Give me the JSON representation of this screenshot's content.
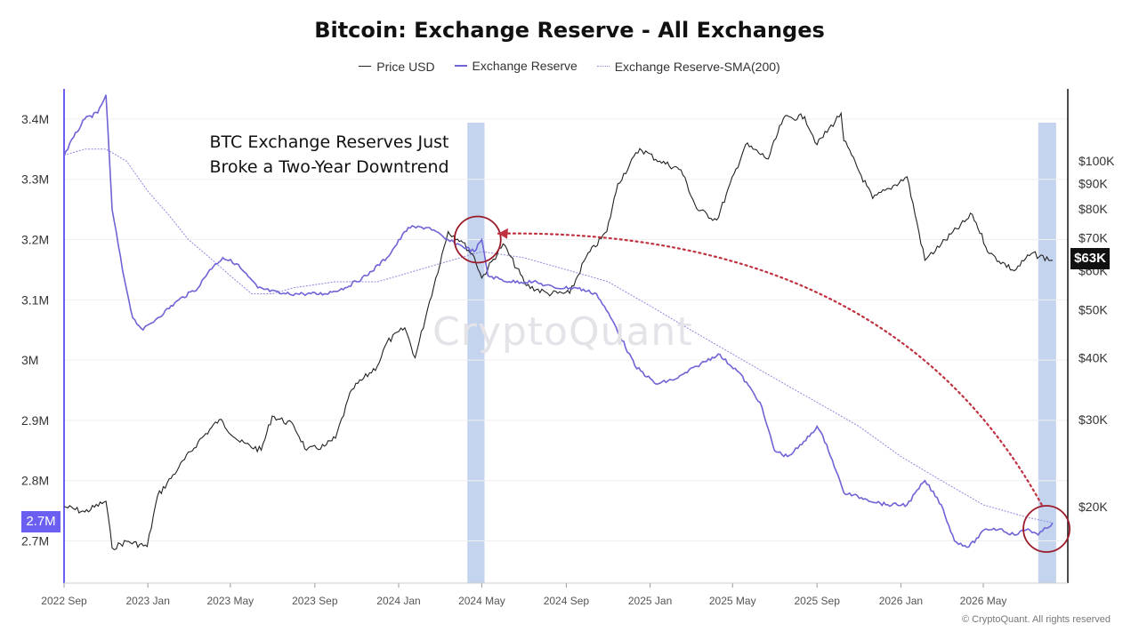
{
  "title": "Bitcoin: Exchange Reserve - All Exchanges",
  "legend": {
    "price": "Price USD",
    "reserve": "Exchange Reserve",
    "sma": "Exchange Reserve-SMA(200)"
  },
  "annotation": {
    "line1": "BTC Exchange Reserves Just",
    "line2": "Broke a Two-Year Downtrend"
  },
  "watermark": "CryptoQuant",
  "copyright": "© CryptoQuant. All rights reserved",
  "current_reserve_label": "2.7M",
  "current_price_label": "$63K",
  "colors": {
    "price": "#222222",
    "reserve": "#6f63d6",
    "sma": "#8f88e0",
    "highlight_band": "#c5d4ee",
    "circle": "#9b1b2b",
    "arrow": "#c0313f",
    "badge_reserve": "#6a5ff0",
    "badge_price": "#111111"
  },
  "chart_data": {
    "type": "line",
    "x_ticks": [
      "2022 Sep",
      "2023 Jan",
      "2023 May",
      "2023 Sep",
      "2024 Jan",
      "2024 May",
      "2024 Sep",
      "2025 Jan",
      "2025 May",
      "2025 Sep",
      "2026 Jan",
      "2026 May"
    ],
    "x_range": [
      "2022-09",
      "2026-09"
    ],
    "y_left": {
      "ticks": [
        "2.7M",
        "2.8M",
        "2.9M",
        "3M",
        "3.1M",
        "3.2M",
        "3.3M",
        "3.4M"
      ],
      "values": [
        2.7,
        2.8,
        2.9,
        3.0,
        3.1,
        3.2,
        3.3,
        3.4
      ],
      "range": [
        2.63,
        3.45
      ],
      "unit": "M BTC"
    },
    "y_right": {
      "ticks": [
        "$20K",
        "$30K",
        "$40K",
        "$50K",
        "$60K",
        "$70K",
        "$80K",
        "$90K",
        "$100K"
      ],
      "values": [
        20000,
        30000,
        40000,
        50000,
        60000,
        70000,
        80000,
        90000,
        100000
      ],
      "scale": "log",
      "range": [
        14000,
        140000
      ]
    },
    "highlight_bands": [
      {
        "from": "2024-04-10",
        "to": "2024-05-05"
      },
      {
        "from": "2026-07-20",
        "to": "2026-08-15"
      }
    ],
    "series": [
      {
        "name": "Exchange Reserve",
        "axis": "left",
        "points": [
          [
            "2022-09-01",
            3.34
          ],
          [
            "2022-09-15",
            3.37
          ],
          [
            "2022-10-01",
            3.4
          ],
          [
            "2022-10-20",
            3.41
          ],
          [
            "2022-11-01",
            3.44
          ],
          [
            "2022-11-10",
            3.25
          ],
          [
            "2022-11-25",
            3.15
          ],
          [
            "2022-12-10",
            3.07
          ],
          [
            "2022-12-25",
            3.05
          ],
          [
            "2023-01-15",
            3.07
          ],
          [
            "2023-02-15",
            3.1
          ],
          [
            "2023-03-15",
            3.12
          ],
          [
            "2023-04-01",
            3.15
          ],
          [
            "2023-04-20",
            3.17
          ],
          [
            "2023-05-10",
            3.16
          ],
          [
            "2023-06-10",
            3.12
          ],
          [
            "2023-07-15",
            3.11
          ],
          [
            "2023-08-15",
            3.11
          ],
          [
            "2023-09-15",
            3.11
          ],
          [
            "2023-10-15",
            3.12
          ],
          [
            "2023-11-15",
            3.14
          ],
          [
            "2023-12-15",
            3.17
          ],
          [
            "2024-01-15",
            3.22
          ],
          [
            "2024-02-15",
            3.22
          ],
          [
            "2024-03-10",
            3.2
          ],
          [
            "2024-04-01",
            3.19
          ],
          [
            "2024-04-20",
            3.18
          ],
          [
            "2024-05-01",
            3.2
          ],
          [
            "2024-05-10",
            3.14
          ],
          [
            "2024-06-10",
            3.13
          ],
          [
            "2024-07-15",
            3.13
          ],
          [
            "2024-08-15",
            3.12
          ],
          [
            "2024-09-15",
            3.12
          ],
          [
            "2024-10-15",
            3.11
          ],
          [
            "2024-11-10",
            3.06
          ],
          [
            "2024-12-10",
            2.99
          ],
          [
            "2025-01-10",
            2.96
          ],
          [
            "2025-02-10",
            2.97
          ],
          [
            "2025-03-10",
            2.99
          ],
          [
            "2025-04-10",
            3.01
          ],
          [
            "2025-05-10",
            2.98
          ],
          [
            "2025-06-10",
            2.93
          ],
          [
            "2025-07-01",
            2.85
          ],
          [
            "2025-07-20",
            2.84
          ],
          [
            "2025-08-10",
            2.86
          ],
          [
            "2025-09-01",
            2.89
          ],
          [
            "2025-09-15",
            2.86
          ],
          [
            "2025-10-10",
            2.78
          ],
          [
            "2025-11-10",
            2.77
          ],
          [
            "2025-12-10",
            2.76
          ],
          [
            "2026-01-10",
            2.76
          ],
          [
            "2026-02-05",
            2.8
          ],
          [
            "2026-03-01",
            2.76
          ],
          [
            "2026-03-20",
            2.7
          ],
          [
            "2026-04-10",
            2.69
          ],
          [
            "2026-05-05",
            2.72
          ],
          [
            "2026-05-25",
            2.72
          ],
          [
            "2026-06-15",
            2.71
          ],
          [
            "2026-07-05",
            2.72
          ],
          [
            "2026-07-20",
            2.71
          ],
          [
            "2026-08-10",
            2.73
          ]
        ]
      },
      {
        "name": "Exchange Reserve-SMA(200)",
        "axis": "left",
        "points": [
          [
            "2022-09-01",
            3.34
          ],
          [
            "2022-10-01",
            3.35
          ],
          [
            "2022-11-01",
            3.35
          ],
          [
            "2022-12-01",
            3.33
          ],
          [
            "2023-01-01",
            3.28
          ],
          [
            "2023-02-01",
            3.24
          ],
          [
            "2023-03-01",
            3.2
          ],
          [
            "2023-04-01",
            3.17
          ],
          [
            "2023-05-01",
            3.14
          ],
          [
            "2023-06-01",
            3.11
          ],
          [
            "2023-07-01",
            3.11
          ],
          [
            "2023-08-01",
            3.12
          ],
          [
            "2023-10-01",
            3.13
          ],
          [
            "2023-12-01",
            3.13
          ],
          [
            "2024-01-01",
            3.14
          ],
          [
            "2024-03-01",
            3.16
          ],
          [
            "2024-05-01",
            3.18
          ],
          [
            "2024-07-01",
            3.17
          ],
          [
            "2024-09-01",
            3.15
          ],
          [
            "2024-11-01",
            3.13
          ],
          [
            "2025-01-01",
            3.09
          ],
          [
            "2025-03-01",
            3.05
          ],
          [
            "2025-05-01",
            3.01
          ],
          [
            "2025-07-01",
            2.97
          ],
          [
            "2025-09-01",
            2.93
          ],
          [
            "2025-11-01",
            2.89
          ],
          [
            "2026-01-01",
            2.84
          ],
          [
            "2026-03-01",
            2.8
          ],
          [
            "2026-05-01",
            2.76
          ],
          [
            "2026-07-01",
            2.74
          ],
          [
            "2026-08-10",
            2.73
          ]
        ]
      },
      {
        "name": "Price USD",
        "axis": "right",
        "points": [
          [
            "2022-09-01",
            20000
          ],
          [
            "2022-10-01",
            19500
          ],
          [
            "2022-11-01",
            20500
          ],
          [
            "2022-11-10",
            16500
          ],
          [
            "2022-12-01",
            17000
          ],
          [
            "2022-12-31",
            16600
          ],
          [
            "2023-01-15",
            21000
          ],
          [
            "2023-02-15",
            24000
          ],
          [
            "2023-03-15",
            27000
          ],
          [
            "2023-04-15",
            30000
          ],
          [
            "2023-05-15",
            27000
          ],
          [
            "2023-06-15",
            26000
          ],
          [
            "2023-07-01",
            30500
          ],
          [
            "2023-08-01",
            29200
          ],
          [
            "2023-08-20",
            26000
          ],
          [
            "2023-09-15",
            26500
          ],
          [
            "2023-10-01",
            27500
          ],
          [
            "2023-10-25",
            34500
          ],
          [
            "2023-12-01",
            38500
          ],
          [
            "2023-12-15",
            43000
          ],
          [
            "2024-01-10",
            46000
          ],
          [
            "2024-01-25",
            40000
          ],
          [
            "2024-02-15",
            52000
          ],
          [
            "2024-03-13",
            72000
          ],
          [
            "2024-04-01",
            69000
          ],
          [
            "2024-04-20",
            64000
          ],
          [
            "2024-05-01",
            58000
          ],
          [
            "2024-06-01",
            68000
          ],
          [
            "2024-07-05",
            56000
          ],
          [
            "2024-08-05",
            54000
          ],
          [
            "2024-09-06",
            54000
          ],
          [
            "2024-09-30",
            64000
          ],
          [
            "2024-10-30",
            72000
          ],
          [
            "2024-11-15",
            90000
          ],
          [
            "2024-12-17",
            106000
          ],
          [
            "2025-01-15",
            100000
          ],
          [
            "2025-02-15",
            96000
          ],
          [
            "2025-03-10",
            80000
          ],
          [
            "2025-04-08",
            76000
          ],
          [
            "2025-05-20",
            108000
          ],
          [
            "2025-06-22",
            101000
          ],
          [
            "2025-07-14",
            122000
          ],
          [
            "2025-08-14",
            123000
          ],
          [
            "2025-09-01",
            108000
          ],
          [
            "2025-10-06",
            125000
          ],
          [
            "2025-10-10",
            110000
          ],
          [
            "2025-11-21",
            84000
          ],
          [
            "2025-12-15",
            88000
          ],
          [
            "2026-01-10",
            93000
          ],
          [
            "2026-02-05",
            63000
          ],
          [
            "2026-03-01",
            68000
          ],
          [
            "2026-04-15",
            78000
          ],
          [
            "2026-05-10",
            65000
          ],
          [
            "2026-06-15",
            60000
          ],
          [
            "2026-07-10",
            65000
          ],
          [
            "2026-08-10",
            63000
          ]
        ]
      }
    ],
    "annotations": {
      "circles": [
        {
          "date": "2024-04-25",
          "value": 3.2,
          "axis": "left"
        },
        {
          "date": "2026-08-01",
          "value": 2.72,
          "axis": "left"
        }
      ],
      "arrow": {
        "from": {
          "date": "2026-07-25",
          "value": 2.76
        },
        "to": {
          "date": "2024-05-25",
          "value": 3.21
        }
      }
    }
  }
}
